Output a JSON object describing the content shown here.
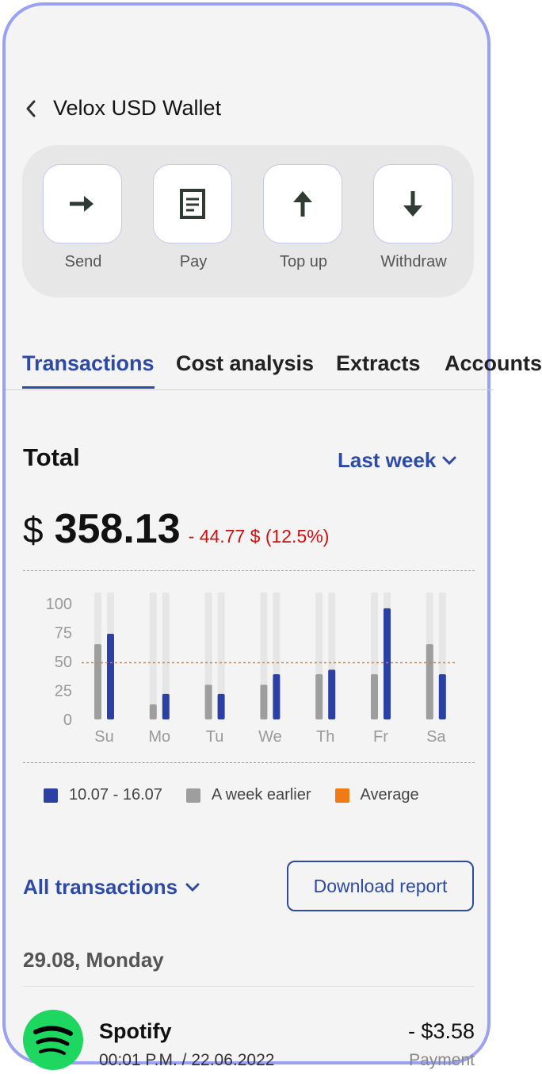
{
  "header": {
    "title": "Velox USD Wallet"
  },
  "actions": [
    {
      "label": "Send",
      "icon": "arrow-right-icon"
    },
    {
      "label": "Pay",
      "icon": "document-icon"
    },
    {
      "label": "Top up",
      "icon": "arrow-up-icon"
    },
    {
      "label": "Withdraw",
      "icon": "arrow-down-icon"
    }
  ],
  "tabs": [
    {
      "label": "Transactions",
      "active": true
    },
    {
      "label": "Cost analysis"
    },
    {
      "label": "Extracts"
    },
    {
      "label": "Accounts"
    }
  ],
  "summary": {
    "label": "Total",
    "period": "Last week",
    "currency": "$",
    "amount": "358.13",
    "change": "- 44.77 $ (12.5%)"
  },
  "chart_data": {
    "type": "bar",
    "categories": [
      "Su",
      "Mo",
      "Tu",
      "We",
      "Th",
      "Fr",
      "Sa"
    ],
    "series": [
      {
        "name": "10.07 - 16.07",
        "values": [
          74,
          22,
          22,
          39,
          43,
          96,
          39
        ],
        "color": "#2c3fa3"
      },
      {
        "name": "A week earlier",
        "values": [
          65,
          13,
          30,
          30,
          39,
          39,
          65
        ],
        "color": "#9e9e9e"
      }
    ],
    "average": {
      "name": "Average",
      "value": 49,
      "color": "#f07a14"
    },
    "y_ticks": [
      "100",
      "75",
      "50",
      "25",
      "0"
    ],
    "ylim": [
      0,
      100
    ],
    "legend": "bottom"
  },
  "transactions": {
    "filter_label": "All transactions",
    "download_label": "Download report",
    "date_group": "29.08, Monday",
    "items": [
      {
        "name": "Spotify",
        "meta": "00:01 P.M. / 22.06.2022",
        "amount": "- $3.58",
        "type": "Payment"
      }
    ]
  }
}
